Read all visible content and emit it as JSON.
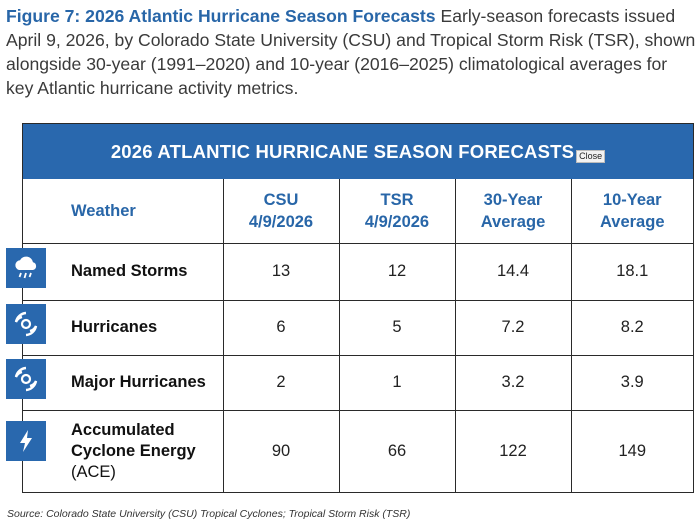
{
  "caption": {
    "figure_title": "Figure 7: 2026 Atlantic Hurricane Season Forecasts",
    "text": "Early-season forecasts issued April 9, 2026, by Colorado State University (CSU) and Tropical Storm Risk (TSR), shown alongside 30-year (1991–2020) and 10-year (2016–2025) climatological averages for key Atlantic hurricane activity metrics."
  },
  "table": {
    "banner_title": "2026 ATLANTIC HURRICANE SEASON FORECASTS",
    "close_label": "Close",
    "headers": {
      "metric": "Weather",
      "csu_line1": "CSU",
      "csu_line2": "4/9/2026",
      "tsr_line1": "TSR",
      "tsr_line2": "4/9/2026",
      "avg30_line1": "30-Year",
      "avg30_line2": "Average",
      "avg10_line1": "10-Year",
      "avg10_line2": "Average"
    },
    "rows": [
      {
        "icon": "storm-cloud-icon",
        "label": "Named Storms",
        "csu": "13",
        "tsr": "12",
        "avg30": "14.4",
        "avg10": "18.1"
      },
      {
        "icon": "hurricane-icon",
        "label": "Hurricanes",
        "csu": "6",
        "tsr": "5",
        "avg30": "7.2",
        "avg10": "8.2"
      },
      {
        "icon": "hurricane-icon",
        "label": "Major Hurricanes",
        "csu": "2",
        "tsr": "1",
        "avg30": "3.2",
        "avg10": "3.9"
      },
      {
        "icon": "lightning-bolt-icon",
        "label_line1": "Accumulated",
        "label_line2": "Cyclone Energy",
        "label_line3": "(ACE)",
        "csu": "90",
        "tsr": "66",
        "avg30": "122",
        "avg10": "149"
      }
    ],
    "colors": {
      "accent": "#2968ae",
      "header_text": "#2866a8"
    }
  },
  "source": "Source: Colorado State University (CSU) Tropical Cyclones; Tropical Storm Risk (TSR)"
}
